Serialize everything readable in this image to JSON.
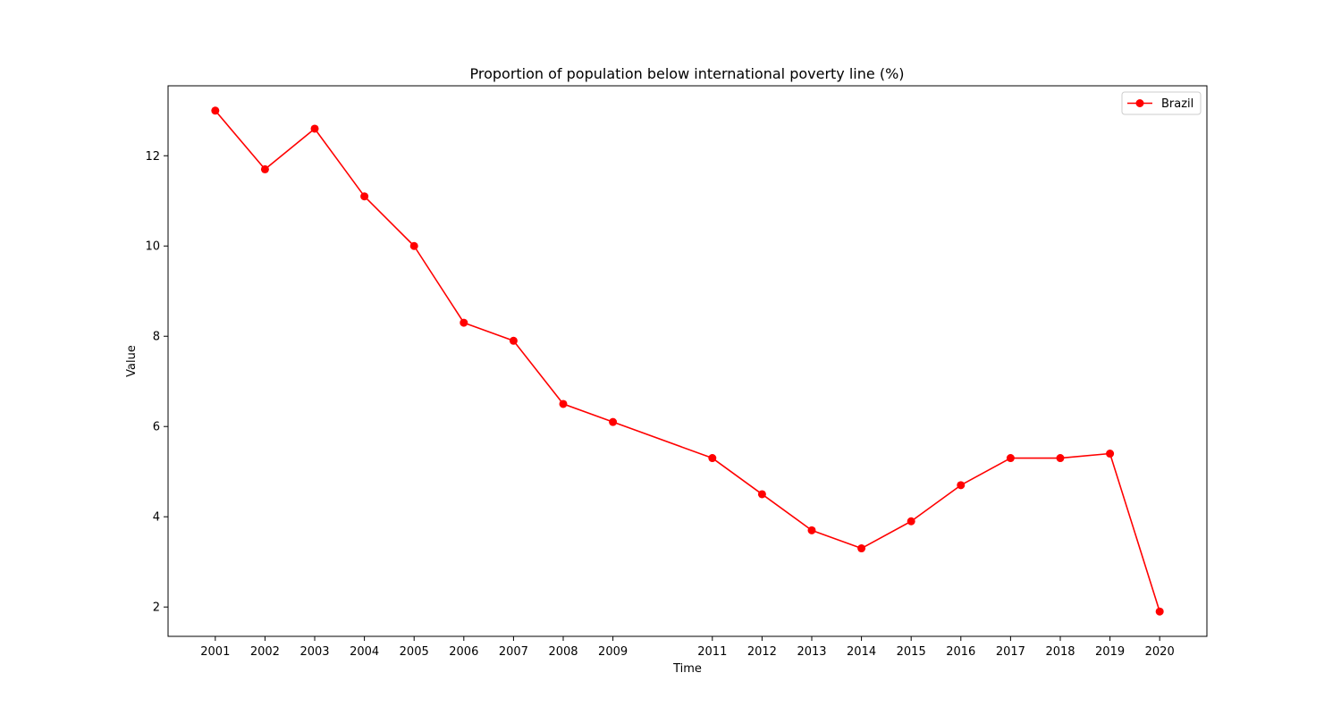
{
  "chart_data": {
    "type": "line",
    "title": "Proportion of population below international poverty line (%)",
    "xlabel": "Time",
    "ylabel": "Value",
    "x": [
      2001,
      2002,
      2003,
      2004,
      2005,
      2006,
      2007,
      2008,
      2009,
      2011,
      2012,
      2013,
      2014,
      2015,
      2016,
      2017,
      2018,
      2019,
      2020
    ],
    "xlim": [
      2000.05,
      2020.95
    ],
    "ylim": [
      1.35,
      13.55
    ],
    "yticks": [
      2,
      4,
      6,
      8,
      10,
      12
    ],
    "series": [
      {
        "name": "Brazil",
        "color": "#ff0000",
        "marker": "circle",
        "values": [
          13.0,
          11.7,
          12.6,
          11.1,
          10.0,
          8.3,
          7.9,
          6.5,
          6.1,
          5.3,
          4.5,
          3.7,
          3.3,
          3.9,
          4.7,
          5.3,
          5.3,
          5.4,
          1.9
        ]
      }
    ],
    "grid": false,
    "legend": "top-right"
  }
}
